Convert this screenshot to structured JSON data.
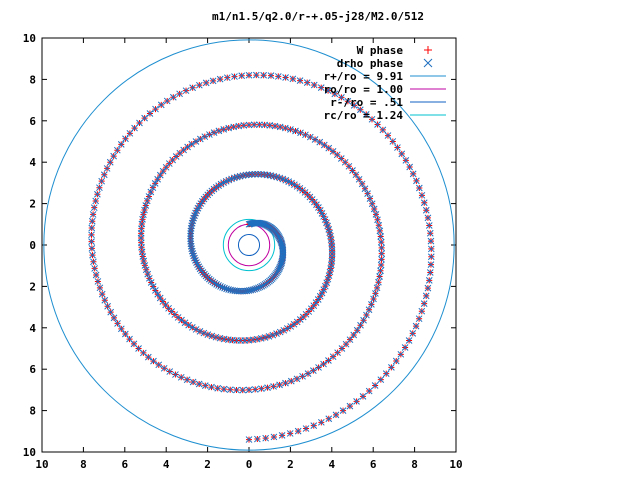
{
  "chart_data": {
    "type": "scatter",
    "title": "m1/n1.5/q2.0/r-+.05-j28/M2.0/512",
    "xlabel": "",
    "ylabel": "",
    "xlim": [
      -10,
      10
    ],
    "ylim": [
      -10,
      10
    ],
    "x_tick_labels": [
      "10",
      "8",
      "6",
      "4",
      "2",
      "0",
      "2",
      "4",
      "6",
      "8",
      "10"
    ],
    "y_tick_labels": [
      "10",
      "8",
      "6",
      "4",
      "2",
      "0",
      "2",
      "4",
      "6",
      "8",
      "10"
    ],
    "grid": false,
    "legend_position": "top-right",
    "series": [
      {
        "name": "W phase",
        "kind": "points",
        "marker": "plus",
        "color": "#ff0000",
        "spiral": {
          "r_start": 1.0,
          "theta_start_deg": 90,
          "growth_per_turn": 2.95,
          "turns": 3.5,
          "points": 512,
          "direction": "clockwise-outward",
          "r_end": 9.4
        }
      },
      {
        "name": "drho phase",
        "kind": "points",
        "marker": "cross",
        "color": "#1f6fc0",
        "spiral": {
          "r_start": 1.0,
          "theta_start_deg": 90,
          "growth_per_turn": 2.95,
          "turns": 3.5,
          "points": 512,
          "direction": "clockwise-outward",
          "r_end": 9.4
        }
      },
      {
        "name": "r+/ro = 9.91",
        "kind": "circle",
        "radius": 9.91,
        "color": "#1f8fd0"
      },
      {
        "name": "ro/ro = 1.00",
        "kind": "circle",
        "radius": 1.0,
        "color": "#c000a0"
      },
      {
        "name": "r-/ro = .51",
        "kind": "circle",
        "radius": 0.51,
        "color": "#1060c0"
      },
      {
        "name": "rc/ro = 1.24",
        "kind": "circle",
        "radius": 1.24,
        "color": "#00c0d0"
      }
    ]
  }
}
